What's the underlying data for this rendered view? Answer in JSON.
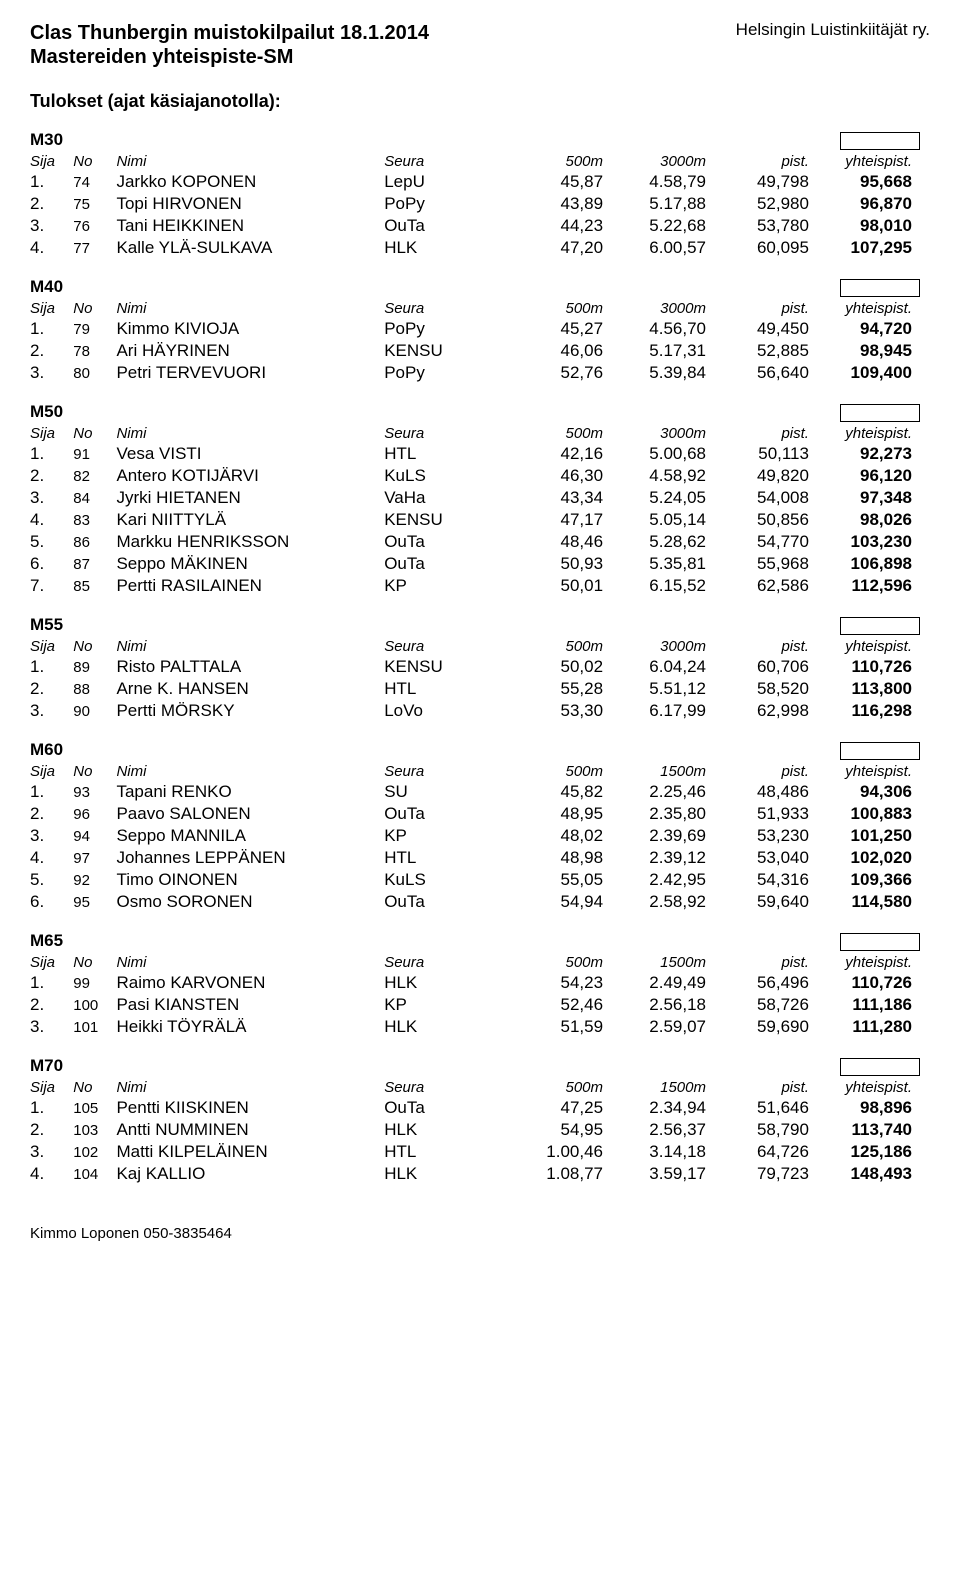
{
  "header": {
    "title_left_line1": "Clas Thunbergin muistokilpailut 18.1.2014",
    "title_left_line2": "Mastereiden yhteispiste-SM",
    "title_right": "Helsingin Luistinkiitäjät ry."
  },
  "section_title": "Tulokset (ajat käsiajanotolla):",
  "columns": {
    "sija": "Sija",
    "no": "No",
    "nimi": "Nimi",
    "seura": "Seura",
    "d1_500": "500m",
    "d2_3000": "3000m",
    "d2_1500": "1500m",
    "pist": "pist.",
    "yht": "yhteispist."
  },
  "categories": [
    {
      "label": "M30",
      "d2": "3000m",
      "rows": [
        {
          "sija": "1.",
          "no": "74",
          "nimi": "Jarkko KOPONEN",
          "seura": "LepU",
          "v1": "45,87",
          "v2": "4.58,79",
          "pist": "49,798",
          "yht": "95,668"
        },
        {
          "sija": "2.",
          "no": "75",
          "nimi": "Topi HIRVONEN",
          "seura": "PoPy",
          "v1": "43,89",
          "v2": "5.17,88",
          "pist": "52,980",
          "yht": "96,870"
        },
        {
          "sija": "3.",
          "no": "76",
          "nimi": "Tani HEIKKINEN",
          "seura": "OuTa",
          "v1": "44,23",
          "v2": "5.22,68",
          "pist": "53,780",
          "yht": "98,010"
        },
        {
          "sija": "4.",
          "no": "77",
          "nimi": "Kalle YLÄ-SULKAVA",
          "seura": "HLK",
          "v1": "47,20",
          "v2": "6.00,57",
          "pist": "60,095",
          "yht": "107,295"
        }
      ]
    },
    {
      "label": "M40",
      "d2": "3000m",
      "rows": [
        {
          "sija": "1.",
          "no": "79",
          "nimi": "Kimmo KIVIOJA",
          "seura": "PoPy",
          "v1": "45,27",
          "v2": "4.56,70",
          "pist": "49,450",
          "yht": "94,720"
        },
        {
          "sija": "2.",
          "no": "78",
          "nimi": "Ari HÄYRINEN",
          "seura": "KENSU",
          "v1": "46,06",
          "v2": "5.17,31",
          "pist": "52,885",
          "yht": "98,945"
        },
        {
          "sija": "3.",
          "no": "80",
          "nimi": "Petri TERVEVUORI",
          "seura": "PoPy",
          "v1": "52,76",
          "v2": "5.39,84",
          "pist": "56,640",
          "yht": "109,400"
        }
      ]
    },
    {
      "label": "M50",
      "d2": "3000m",
      "rows": [
        {
          "sija": "1.",
          "no": "91",
          "nimi": "Vesa VISTI",
          "seura": "HTL",
          "v1": "42,16",
          "v2": "5.00,68",
          "pist": "50,113",
          "yht": "92,273"
        },
        {
          "sija": "2.",
          "no": "82",
          "nimi": "Antero KOTIJÄRVI",
          "seura": "KuLS",
          "v1": "46,30",
          "v2": "4.58,92",
          "pist": "49,820",
          "yht": "96,120"
        },
        {
          "sija": "3.",
          "no": "84",
          "nimi": "Jyrki HIETANEN",
          "seura": "VaHa",
          "v1": "43,34",
          "v2": "5.24,05",
          "pist": "54,008",
          "yht": "97,348"
        },
        {
          "sija": "4.",
          "no": "83",
          "nimi": "Kari NIITTYLÄ",
          "seura": "KENSU",
          "v1": "47,17",
          "v2": "5.05,14",
          "pist": "50,856",
          "yht": "98,026"
        },
        {
          "sija": "5.",
          "no": "86",
          "nimi": "Markku HENRIKSSON",
          "seura": "OuTa",
          "v1": "48,46",
          "v2": "5.28,62",
          "pist": "54,770",
          "yht": "103,230"
        },
        {
          "sija": "6.",
          "no": "87",
          "nimi": "Seppo MÄKINEN",
          "seura": "OuTa",
          "v1": "50,93",
          "v2": "5.35,81",
          "pist": "55,968",
          "yht": "106,898"
        },
        {
          "sija": "7.",
          "no": "85",
          "nimi": "Pertti RASILAINEN",
          "seura": "KP",
          "v1": "50,01",
          "v2": "6.15,52",
          "pist": "62,586",
          "yht": "112,596"
        }
      ]
    },
    {
      "label": "M55",
      "d2": "3000m",
      "rows": [
        {
          "sija": "1.",
          "no": "89",
          "nimi": "Risto PALTTALA",
          "seura": "KENSU",
          "v1": "50,02",
          "v2": "6.04,24",
          "pist": "60,706",
          "yht": "110,726"
        },
        {
          "sija": "2.",
          "no": "88",
          "nimi": "Arne K. HANSEN",
          "seura": "HTL",
          "v1": "55,28",
          "v2": "5.51,12",
          "pist": "58,520",
          "yht": "113,800"
        },
        {
          "sija": "3.",
          "no": "90",
          "nimi": "Pertti MÖRSKY",
          "seura": "LoVo",
          "v1": "53,30",
          "v2": "6.17,99",
          "pist": "62,998",
          "yht": "116,298"
        }
      ]
    },
    {
      "label": "M60",
      "d2": "1500m",
      "rows": [
        {
          "sija": "1.",
          "no": "93",
          "nimi": "Tapani RENKO",
          "seura": "SU",
          "v1": "45,82",
          "v2": "2.25,46",
          "pist": "48,486",
          "yht": "94,306"
        },
        {
          "sija": "2.",
          "no": "96",
          "nimi": "Paavo SALONEN",
          "seura": "OuTa",
          "v1": "48,95",
          "v2": "2.35,80",
          "pist": "51,933",
          "yht": "100,883"
        },
        {
          "sija": "3.",
          "no": "94",
          "nimi": "Seppo MANNILA",
          "seura": "KP",
          "v1": "48,02",
          "v2": "2.39,69",
          "pist": "53,230",
          "yht": "101,250"
        },
        {
          "sija": "4.",
          "no": "97",
          "nimi": "Johannes LEPPÄNEN",
          "seura": "HTL",
          "v1": "48,98",
          "v2": "2.39,12",
          "pist": "53,040",
          "yht": "102,020"
        },
        {
          "sija": "5.",
          "no": "92",
          "nimi": "Timo OINONEN",
          "seura": "KuLS",
          "v1": "55,05",
          "v2": "2.42,95",
          "pist": "54,316",
          "yht": "109,366"
        },
        {
          "sija": "6.",
          "no": "95",
          "nimi": "Osmo SORONEN",
          "seura": "OuTa",
          "v1": "54,94",
          "v2": "2.58,92",
          "pist": "59,640",
          "yht": "114,580"
        }
      ]
    },
    {
      "label": "M65",
      "d2": "1500m",
      "rows": [
        {
          "sija": "1.",
          "no": "99",
          "nimi": "Raimo KARVONEN",
          "seura": "HLK",
          "v1": "54,23",
          "v2": "2.49,49",
          "pist": "56,496",
          "yht": "110,726"
        },
        {
          "sija": "2.",
          "no": "100",
          "nimi": "Pasi KIANSTEN",
          "seura": "KP",
          "v1": "52,46",
          "v2": "2.56,18",
          "pist": "58,726",
          "yht": "111,186"
        },
        {
          "sija": "3.",
          "no": "101",
          "nimi": "Heikki TÖYRÄLÄ",
          "seura": "HLK",
          "v1": "51,59",
          "v2": "2.59,07",
          "pist": "59,690",
          "yht": "111,280"
        }
      ]
    },
    {
      "label": "M70",
      "d2": "1500m",
      "rows": [
        {
          "sija": "1.",
          "no": "105",
          "nimi": "Pentti KIISKINEN",
          "seura": "OuTa",
          "v1": "47,25",
          "v2": "2.34,94",
          "pist": "51,646",
          "yht": "98,896"
        },
        {
          "sija": "2.",
          "no": "103",
          "nimi": "Antti NUMMINEN",
          "seura": "HLK",
          "v1": "54,95",
          "v2": "2.56,37",
          "pist": "58,790",
          "yht": "113,740"
        },
        {
          "sija": "3.",
          "no": "102",
          "nimi": "Matti KILPELÄINEN",
          "seura": "HTL",
          "v1": "1.00,46",
          "v2": "3.14,18",
          "pist": "64,726",
          "yht": "125,186"
        },
        {
          "sija": "4.",
          "no": "104",
          "nimi": "Kaj KALLIO",
          "seura": "HLK",
          "v1": "1.08,77",
          "v2": "3.59,17",
          "pist": "79,723",
          "yht": "148,493"
        }
      ]
    }
  ],
  "footer": "Kimmo Loponen 050-3835464"
}
